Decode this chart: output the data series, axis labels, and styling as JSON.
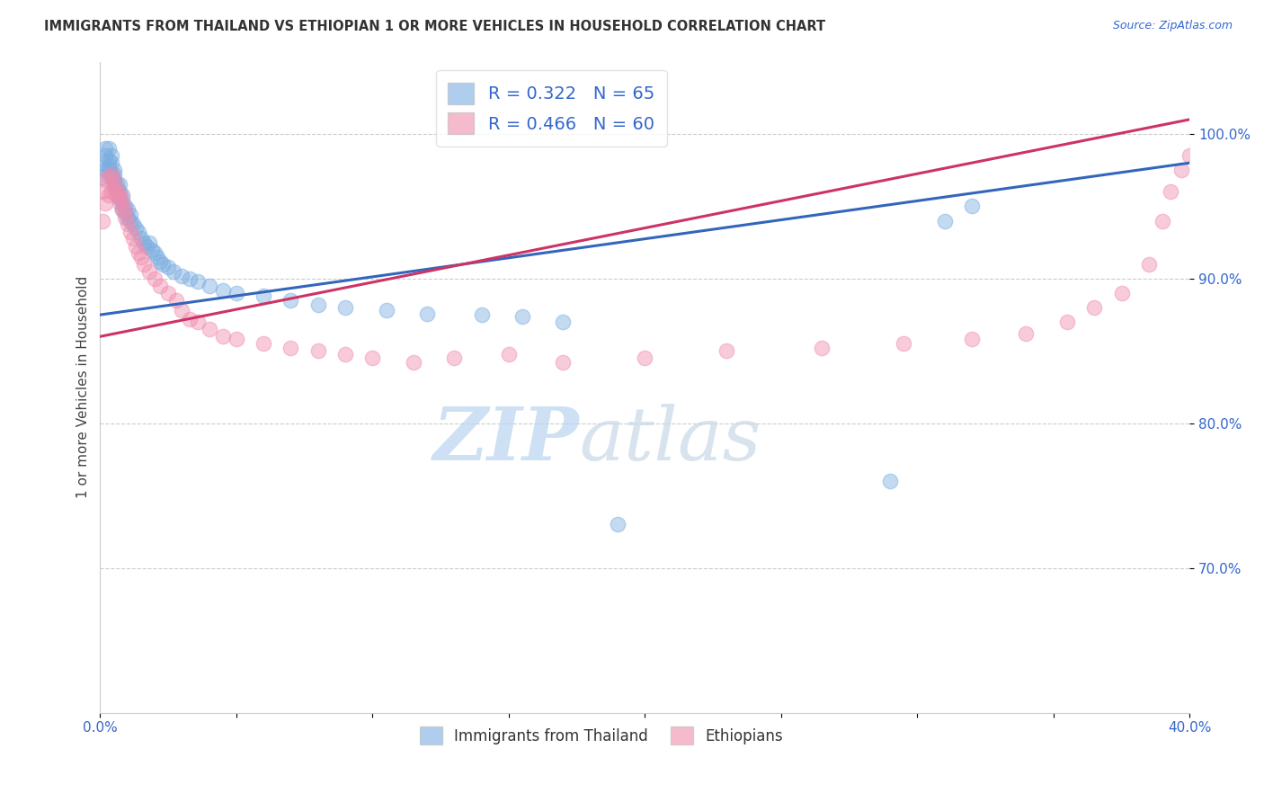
{
  "title": "IMMIGRANTS FROM THAILAND VS ETHIOPIAN 1 OR MORE VEHICLES IN HOUSEHOLD CORRELATION CHART",
  "source": "Source: ZipAtlas.com",
  "ylabel": "1 or more Vehicles in Household",
  "xlim": [
    0.0,
    0.4
  ],
  "ylim": [
    0.6,
    1.05
  ],
  "R1": 0.322,
  "N1": 65,
  "R2": 0.466,
  "N2": 60,
  "color1": "#7aade0",
  "color2": "#f08cad",
  "legend_label1": "Immigrants from Thailand",
  "legend_label2": "Ethiopians",
  "ytick_positions": [
    0.7,
    0.8,
    0.9,
    1.0
  ],
  "ytick_labels": [
    "70.0%",
    "80.0%",
    "90.0%",
    "100.0%"
  ],
  "xtick_positions": [
    0.0,
    0.05,
    0.1,
    0.15,
    0.2,
    0.25,
    0.3,
    0.35,
    0.4
  ],
  "xtick_labels": [
    "0.0%",
    "",
    "",
    "",
    "",
    "",
    "",
    "",
    "40.0%"
  ],
  "trendline1_x0": 0.0,
  "trendline1_y0": 0.875,
  "trendline1_x1": 0.4,
  "trendline1_y1": 0.98,
  "trendline2_x0": 0.0,
  "trendline2_y0": 0.86,
  "trendline2_x1": 0.4,
  "trendline2_y1": 1.01,
  "thailand_x": [
    0.001,
    0.001,
    0.002,
    0.002,
    0.002,
    0.003,
    0.003,
    0.003,
    0.003,
    0.004,
    0.004,
    0.004,
    0.004,
    0.005,
    0.005,
    0.005,
    0.005,
    0.006,
    0.006,
    0.006,
    0.007,
    0.007,
    0.007,
    0.008,
    0.008,
    0.008,
    0.009,
    0.009,
    0.01,
    0.01,
    0.011,
    0.011,
    0.012,
    0.013,
    0.014,
    0.015,
    0.016,
    0.017,
    0.018,
    0.019,
    0.02,
    0.021,
    0.022,
    0.023,
    0.025,
    0.027,
    0.03,
    0.033,
    0.036,
    0.04,
    0.045,
    0.05,
    0.06,
    0.07,
    0.08,
    0.09,
    0.105,
    0.12,
    0.14,
    0.155,
    0.17,
    0.19,
    0.29,
    0.31,
    0.32
  ],
  "thailand_y": [
    0.98,
    0.97,
    0.975,
    0.985,
    0.99,
    0.978,
    0.982,
    0.99,
    0.975,
    0.97,
    0.98,
    0.985,
    0.972,
    0.975,
    0.968,
    0.972,
    0.965,
    0.965,
    0.958,
    0.962,
    0.96,
    0.955,
    0.965,
    0.952,
    0.948,
    0.958,
    0.945,
    0.95,
    0.942,
    0.948,
    0.94,
    0.944,
    0.938,
    0.935,
    0.932,
    0.928,
    0.925,
    0.922,
    0.925,
    0.92,
    0.918,
    0.915,
    0.912,
    0.91,
    0.908,
    0.905,
    0.902,
    0.9,
    0.898,
    0.895,
    0.892,
    0.89,
    0.888,
    0.885,
    0.882,
    0.88,
    0.878,
    0.876,
    0.875,
    0.874,
    0.87,
    0.73,
    0.76,
    0.94,
    0.95
  ],
  "ethiopian_x": [
    0.001,
    0.001,
    0.002,
    0.002,
    0.003,
    0.003,
    0.004,
    0.004,
    0.005,
    0.005,
    0.006,
    0.006,
    0.007,
    0.007,
    0.008,
    0.008,
    0.009,
    0.009,
    0.01,
    0.011,
    0.012,
    0.013,
    0.014,
    0.015,
    0.016,
    0.018,
    0.02,
    0.022,
    0.025,
    0.028,
    0.03,
    0.033,
    0.036,
    0.04,
    0.045,
    0.05,
    0.06,
    0.07,
    0.08,
    0.09,
    0.1,
    0.115,
    0.13,
    0.15,
    0.17,
    0.2,
    0.23,
    0.265,
    0.295,
    0.32,
    0.34,
    0.355,
    0.365,
    0.375,
    0.385,
    0.39,
    0.393,
    0.397,
    0.4,
    0.403
  ],
  "ethiopian_y": [
    0.94,
    0.96,
    0.952,
    0.968,
    0.958,
    0.97,
    0.96,
    0.972,
    0.962,
    0.968,
    0.958,
    0.962,
    0.952,
    0.958,
    0.948,
    0.955,
    0.942,
    0.948,
    0.938,
    0.932,
    0.928,
    0.922,
    0.918,
    0.915,
    0.91,
    0.905,
    0.9,
    0.895,
    0.89,
    0.885,
    0.878,
    0.872,
    0.87,
    0.865,
    0.86,
    0.858,
    0.855,
    0.852,
    0.85,
    0.848,
    0.845,
    0.842,
    0.845,
    0.848,
    0.842,
    0.845,
    0.85,
    0.852,
    0.855,
    0.858,
    0.862,
    0.87,
    0.88,
    0.89,
    0.91,
    0.94,
    0.96,
    0.975,
    0.985,
    0.992
  ]
}
